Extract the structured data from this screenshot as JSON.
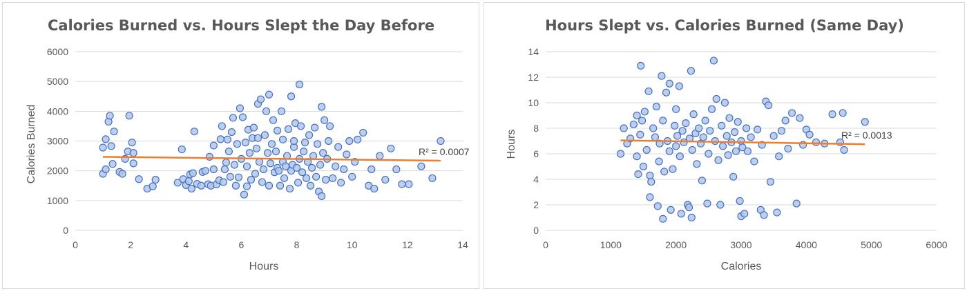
{
  "chart_data": [
    {
      "type": "scatter",
      "title": "Calories Burned vs. Hours Slept the Day Before",
      "xlabel": "Hours",
      "ylabel": "Calories Burned",
      "xlim": [
        0,
        14
      ],
      "ylim": [
        0,
        6000
      ],
      "xticks": [
        0,
        2,
        4,
        6,
        8,
        10,
        12,
        14
      ],
      "yticks": [
        0,
        1000,
        2000,
        3000,
        4000,
        5000,
        6000
      ],
      "grid": "horizontal",
      "trendline": {
        "x": [
          1.0,
          13.2
        ],
        "y": [
          2470,
          2340
        ],
        "r2_label": "R² = 0.0007"
      },
      "series": [
        {
          "color": "#4472c4",
          "points": [
            [
              1.0,
              1900
            ],
            [
              1.0,
              2780
            ],
            [
              1.1,
              2050
            ],
            [
              1.1,
              3060
            ],
            [
              1.2,
              3650
            ],
            [
              1.25,
              3850
            ],
            [
              1.3,
              2830
            ],
            [
              1.35,
              2230
            ],
            [
              1.4,
              3320
            ],
            [
              1.6,
              1960
            ],
            [
              1.7,
              1900
            ],
            [
              1.8,
              2400
            ],
            [
              1.9,
              2650
            ],
            [
              1.95,
              3850
            ],
            [
              2.05,
              2950
            ],
            [
              2.1,
              2600
            ],
            [
              2.1,
              2250
            ],
            [
              2.3,
              1720
            ],
            [
              2.6,
              1400
            ],
            [
              2.8,
              1480
            ],
            [
              2.9,
              1700
            ],
            [
              3.7,
              1600
            ],
            [
              3.85,
              2720
            ],
            [
              3.9,
              1720
            ],
            [
              4.0,
              1520
            ],
            [
              4.1,
              1650
            ],
            [
              4.15,
              1880
            ],
            [
              4.2,
              1400
            ],
            [
              4.25,
              1920
            ],
            [
              4.3,
              3320
            ],
            [
              4.4,
              1560
            ],
            [
              4.55,
              1500
            ],
            [
              4.6,
              1960
            ],
            [
              4.7,
              2000
            ],
            [
              4.8,
              1550
            ],
            [
              4.85,
              2470
            ],
            [
              4.9,
              1500
            ],
            [
              5.0,
              2850
            ],
            [
              5.0,
              2050
            ],
            [
              5.1,
              1540
            ],
            [
              5.2,
              1680
            ],
            [
              5.25,
              3060
            ],
            [
              5.3,
              3500
            ],
            [
              5.35,
              1620
            ],
            [
              5.4,
              2050
            ],
            [
              5.45,
              2280
            ],
            [
              5.5,
              3050
            ],
            [
              5.55,
              2650
            ],
            [
              5.6,
              1800
            ],
            [
              5.65,
              3300
            ],
            [
              5.7,
              3780
            ],
            [
              5.75,
              2200
            ],
            [
              5.8,
              1500
            ],
            [
              5.85,
              2900
            ],
            [
              5.9,
              1780
            ],
            [
              5.95,
              4100
            ],
            [
              6.0,
              2400
            ],
            [
              6.05,
              3800
            ],
            [
              6.1,
              1200
            ],
            [
              6.15,
              2950
            ],
            [
              6.2,
              1480
            ],
            [
              6.2,
              2150
            ],
            [
              6.25,
              3380
            ],
            [
              6.3,
              2600
            ],
            [
              6.35,
              1700
            ],
            [
              6.4,
              3100
            ],
            [
              6.45,
              3450
            ],
            [
              6.5,
              1900
            ],
            [
              6.55,
              2750
            ],
            [
              6.6,
              4250
            ],
            [
              6.6,
              3100
            ],
            [
              6.65,
              2300
            ],
            [
              6.7,
              4400
            ],
            [
              6.75,
              1620
            ],
            [
              6.8,
              2050
            ],
            [
              6.85,
              3200
            ],
            [
              6.9,
              4000
            ],
            [
              6.95,
              2600
            ],
            [
              7.0,
              1500
            ],
            [
              7.0,
              4560
            ],
            [
              7.05,
              2250
            ],
            [
              7.1,
              2900
            ],
            [
              7.15,
              3700
            ],
            [
              7.2,
              1950
            ],
            [
              7.25,
              2650
            ],
            [
              7.3,
              3350
            ],
            [
              7.3,
              2100
            ],
            [
              7.35,
              2000
            ],
            [
              7.4,
              1500
            ],
            [
              7.45,
              4000
            ],
            [
              7.5,
              2300
            ],
            [
              7.5,
              3050
            ],
            [
              7.55,
              1750
            ],
            [
              7.6,
              2150
            ],
            [
              7.65,
              2500
            ],
            [
              7.7,
              3400
            ],
            [
              7.75,
              1400
            ],
            [
              7.8,
              4500
            ],
            [
              7.8,
              2000
            ],
            [
              7.85,
              2200
            ],
            [
              7.9,
              2800
            ],
            [
              7.9,
              3000
            ],
            [
              7.95,
              3600
            ],
            [
              8.0,
              2100
            ],
            [
              8.05,
              1600
            ],
            [
              8.1,
              4900
            ],
            [
              8.1,
              2400
            ],
            [
              8.15,
              3500
            ],
            [
              8.2,
              1950
            ],
            [
              8.25,
              2650
            ],
            [
              8.3,
              2950
            ],
            [
              8.35,
              1750
            ],
            [
              8.4,
              2300
            ],
            [
              8.45,
              3200
            ],
            [
              8.5,
              1500
            ],
            [
              8.55,
              2100
            ],
            [
              8.6,
              2500
            ],
            [
              8.65,
              3450
            ],
            [
              8.7,
              1800
            ],
            [
              8.75,
              2900
            ],
            [
              8.8,
              1300
            ],
            [
              8.85,
              2200
            ],
            [
              8.9,
              4150
            ],
            [
              8.9,
              1150
            ],
            [
              8.95,
              2600
            ],
            [
              9.0,
              3700
            ],
            [
              9.05,
              1700
            ],
            [
              9.1,
              2400
            ],
            [
              9.15,
              3000
            ],
            [
              9.2,
              3500
            ],
            [
              9.3,
              1750
            ],
            [
              9.4,
              2150
            ],
            [
              9.5,
              2800
            ],
            [
              9.6,
              1600
            ],
            [
              9.7,
              2050
            ],
            [
              9.8,
              2550
            ],
            [
              9.9,
              3000
            ],
            [
              10.0,
              1800
            ],
            [
              10.1,
              2300
            ],
            [
              10.2,
              3050
            ],
            [
              10.4,
              3280
            ],
            [
              10.6,
              1500
            ],
            [
              10.7,
              2050
            ],
            [
              10.8,
              1400
            ],
            [
              11.0,
              2500
            ],
            [
              11.2,
              1700
            ],
            [
              11.4,
              2750
            ],
            [
              11.6,
              2050
            ],
            [
              11.8,
              1550
            ],
            [
              12.05,
              1550
            ],
            [
              12.5,
              2150
            ],
            [
              12.9,
              1750
            ],
            [
              13.2,
              3000
            ]
          ]
        }
      ]
    },
    {
      "type": "scatter",
      "title": "Hours Slept vs. Calories Burned (Same Day)",
      "xlabel": "Calories",
      "ylabel": "Hours",
      "xlim": [
        0,
        6000
      ],
      "ylim": [
        0,
        14
      ],
      "xticks": [
        0,
        1000,
        2000,
        3000,
        4000,
        5000,
        6000
      ],
      "yticks": [
        0,
        2,
        4,
        6,
        8,
        10,
        12,
        14
      ],
      "grid": "horizontal",
      "trendline": {
        "x": [
          1150,
          4900
        ],
        "y": [
          7.05,
          6.75
        ],
        "r2_label": "R² = 0.0013"
      },
      "series": [
        {
          "color": "#4472c4",
          "points": [
            [
              1150,
              6.0
            ],
            [
              1200,
              8.0
            ],
            [
              1250,
              6.8
            ],
            [
              1300,
              7.2
            ],
            [
              1350,
              8.3
            ],
            [
              1400,
              5.8
            ],
            [
              1400,
              9.0
            ],
            [
              1420,
              4.4
            ],
            [
              1450,
              7.5
            ],
            [
              1460,
              12.9
            ],
            [
              1480,
              8.6
            ],
            [
              1500,
              5.0
            ],
            [
              1520,
              9.3
            ],
            [
              1550,
              6.3
            ],
            [
              1580,
              10.9
            ],
            [
              1600,
              2.6
            ],
            [
              1600,
              4.3
            ],
            [
              1620,
              3.8
            ],
            [
              1650,
              8.0
            ],
            [
              1680,
              7.3
            ],
            [
              1700,
              9.7
            ],
            [
              1720,
              1.9
            ],
            [
              1740,
              5.4
            ],
            [
              1750,
              6.8
            ],
            [
              1780,
              12.1
            ],
            [
              1800,
              0.9
            ],
            [
              1800,
              8.6
            ],
            [
              1820,
              4.6
            ],
            [
              1850,
              10.8
            ],
            [
              1870,
              7.0
            ],
            [
              1900,
              6.2
            ],
            [
              1900,
              11.5
            ],
            [
              1920,
              1.6
            ],
            [
              1950,
              4.8
            ],
            [
              1980,
              8.2
            ],
            [
              2000,
              6.6
            ],
            [
              2000,
              9.5
            ],
            [
              2020,
              7.4
            ],
            [
              2050,
              11.3
            ],
            [
              2060,
              5.8
            ],
            [
              2080,
              1.3
            ],
            [
              2100,
              7.8
            ],
            [
              2120,
              6.9
            ],
            [
              2150,
              8.4
            ],
            [
              2180,
              2.0
            ],
            [
              2200,
              1.8
            ],
            [
              2210,
              7.2
            ],
            [
              2230,
              12.5
            ],
            [
              2240,
              1.0
            ],
            [
              2250,
              6.3
            ],
            [
              2270,
              9.1
            ],
            [
              2300,
              7.6
            ],
            [
              2320,
              5.2
            ],
            [
              2350,
              8.0
            ],
            [
              2380,
              6.8
            ],
            [
              2400,
              3.9
            ],
            [
              2420,
              7.3
            ],
            [
              2450,
              8.6
            ],
            [
              2480,
              2.1
            ],
            [
              2500,
              6.0
            ],
            [
              2520,
              7.8
            ],
            [
              2550,
              9.5
            ],
            [
              2580,
              13.3
            ],
            [
              2600,
              7.0
            ],
            [
              2620,
              10.3
            ],
            [
              2650,
              5.5
            ],
            [
              2680,
              2.0
            ],
            [
              2700,
              8.2
            ],
            [
              2720,
              6.6
            ],
            [
              2750,
              10.0
            ],
            [
              2780,
              7.4
            ],
            [
              2800,
              5.9
            ],
            [
              2820,
              8.8
            ],
            [
              2850,
              6.9
            ],
            [
              2880,
              4.2
            ],
            [
              2900,
              7.7
            ],
            [
              2920,
              6.2
            ],
            [
              2950,
              8.5
            ],
            [
              2980,
              2.3
            ],
            [
              3000,
              1.1
            ],
            [
              3000,
              7.0
            ],
            [
              3020,
              6.5
            ],
            [
              3050,
              1.3
            ],
            [
              3080,
              8.0
            ],
            [
              3100,
              6.2
            ],
            [
              3150,
              7.3
            ],
            [
              3200,
              5.4
            ],
            [
              3250,
              7.9
            ],
            [
              3300,
              1.6
            ],
            [
              3320,
              6.7
            ],
            [
              3350,
              1.2
            ],
            [
              3380,
              10.1
            ],
            [
              3420,
              9.8
            ],
            [
              3450,
              3.8
            ],
            [
              3500,
              7.4
            ],
            [
              3550,
              1.4
            ],
            [
              3580,
              5.8
            ],
            [
              3620,
              7.8
            ],
            [
              3680,
              8.6
            ],
            [
              3720,
              6.4
            ],
            [
              3780,
              9.2
            ],
            [
              3850,
              2.1
            ],
            [
              3900,
              8.8
            ],
            [
              3950,
              6.7
            ],
            [
              4000,
              7.9
            ],
            [
              4050,
              7.5
            ],
            [
              4150,
              6.9
            ],
            [
              4280,
              6.8
            ],
            [
              4400,
              9.1
            ],
            [
              4520,
              6.9
            ],
            [
              4560,
              9.2
            ],
            [
              4580,
              6.3
            ],
            [
              4900,
              8.5
            ]
          ]
        }
      ]
    }
  ]
}
